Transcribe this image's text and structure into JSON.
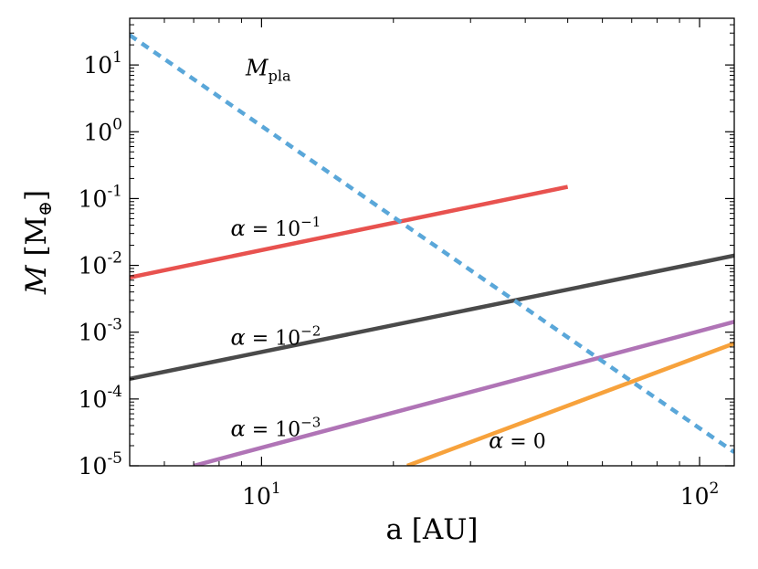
{
  "chart_data": {
    "type": "line",
    "xlabel": "a [AU]",
    "ylabel_main": "M",
    "ylabel_rest": " [M",
    "ylabel_sub": "⊕",
    "ylabel_close": "]",
    "xscale": "log",
    "yscale": "log",
    "xlim": [
      5,
      120
    ],
    "ylim": [
      1e-05,
      50
    ],
    "grid": false,
    "x_ticks": [
      {
        "value": 10,
        "base": "10",
        "exp": "1"
      },
      {
        "value": 100,
        "base": "10",
        "exp": "2"
      }
    ],
    "y_ticks": [
      {
        "value": 1e-05,
        "base": "10",
        "exp": "-5"
      },
      {
        "value": 0.0001,
        "base": "10",
        "exp": "-4"
      },
      {
        "value": 0.001,
        "base": "10",
        "exp": "-3"
      },
      {
        "value": 0.01,
        "base": "10",
        "exp": "-2"
      },
      {
        "value": 0.1,
        "base": "10",
        "exp": "-1"
      },
      {
        "value": 1,
        "base": "10",
        "exp": "0"
      },
      {
        "value": 10,
        "base": "10",
        "exp": "1"
      }
    ],
    "series": [
      {
        "label_main": "α",
        "label_eq": " = ",
        "label_base": "10",
        "label_exp": "−1",
        "color": "#e8524f",
        "style": "solid",
        "x": [
          5,
          50
        ],
        "y": [
          0.0066,
          0.15
        ],
        "label_at": [
          8.5,
          0.028
        ]
      },
      {
        "label_main": "α",
        "label_eq": " = ",
        "label_base": "10",
        "label_exp": "−2",
        "color": "#4a4a4a",
        "style": "solid",
        "x": [
          5,
          120
        ],
        "y": [
          0.0002,
          0.014
        ],
        "label_at": [
          8.5,
          0.00065
        ]
      },
      {
        "label_main": "α",
        "label_eq": " = ",
        "label_base": "10",
        "label_exp": "−3",
        "color": "#b074b6",
        "style": "solid",
        "x": [
          7,
          120
        ],
        "y": [
          1e-05,
          0.00143
        ],
        "label_at": [
          8.5,
          2.8e-05
        ]
      },
      {
        "label_main": "α",
        "label_eq": " = ",
        "label_base": "0",
        "label_exp": "",
        "color": "#f7a23c",
        "style": "solid",
        "x": [
          21.5,
          120
        ],
        "y": [
          1e-05,
          0.00068
        ],
        "label_at": [
          33,
          1.85e-05
        ]
      },
      {
        "label_main": "M",
        "label_sub": "pla",
        "color": "#5aa7d9",
        "style": "dashed",
        "x": [
          5,
          120
        ],
        "y": [
          28,
          1.6e-05
        ],
        "label_at": [
          9.2,
          7
        ]
      }
    ]
  }
}
